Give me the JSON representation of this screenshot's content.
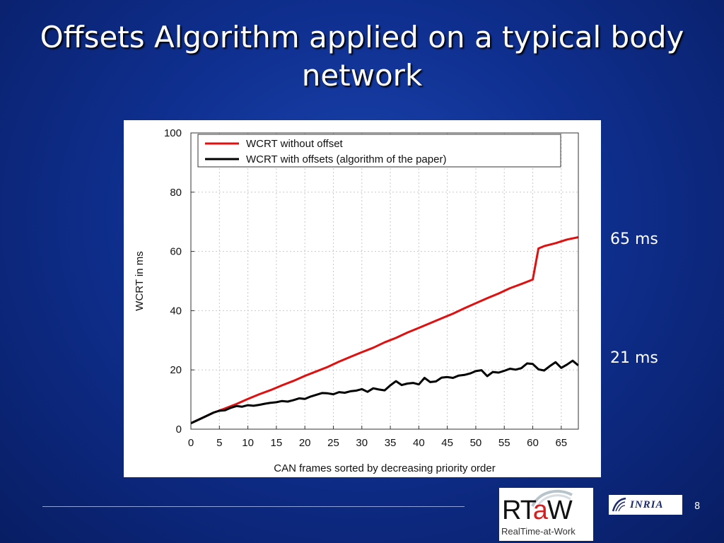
{
  "slide": {
    "title": "Offsets Algorithm applied on a typical body network",
    "annotation_high": "65 ms",
    "annotation_low": "21 ms",
    "page_number": "8",
    "logo_rtaw_main_pre": "RT",
    "logo_rtaw_main_accent": "a",
    "logo_rtaw_main_post": "W",
    "logo_rtaw_tagline": "RealTime-at-Work",
    "logo_inria": "INRIA"
  },
  "chart_data": {
    "type": "line",
    "title": "",
    "xlabel": "CAN frames sorted by decreasing priority order",
    "ylabel": "WCRT in ms",
    "xlim": [
      0,
      68
    ],
    "ylim": [
      0,
      100
    ],
    "xticks": [
      0,
      5,
      10,
      15,
      20,
      25,
      30,
      35,
      40,
      45,
      50,
      55,
      60,
      65
    ],
    "yticks": [
      0,
      20,
      40,
      60,
      80,
      100
    ],
    "grid": true,
    "legend": "top-left",
    "series": [
      {
        "name": "WCRT without offset",
        "color": "#e01010",
        "x": [
          0,
          2,
          4,
          5,
          6,
          8,
          10,
          12,
          14,
          16,
          18,
          20,
          22,
          24,
          26,
          28,
          30,
          32,
          34,
          36,
          38,
          40,
          42,
          44,
          46,
          48,
          50,
          52,
          54,
          56,
          58,
          60,
          61,
          62,
          64,
          66,
          68
        ],
        "y": [
          2,
          3.8,
          5.6,
          6.3,
          7,
          8.5,
          10.2,
          11.8,
          13.2,
          14.8,
          16.3,
          18,
          19.5,
          21,
          22.8,
          24.4,
          26,
          27.5,
          29.3,
          30.8,
          32.6,
          34.2,
          35.8,
          37.4,
          39,
          40.8,
          42.5,
          44.2,
          45.8,
          47.6,
          49,
          50.5,
          61,
          61.8,
          62.8,
          64,
          64.8
        ]
      },
      {
        "name": "WCRT with offsets (algorithm of the paper)",
        "color": "#000000",
        "x": [
          0,
          2,
          4,
          5,
          6,
          7,
          8,
          9,
          10,
          11,
          12,
          13,
          14,
          15,
          16,
          17,
          18,
          19,
          20,
          21,
          22,
          23,
          24,
          25,
          26,
          27,
          28,
          29,
          30,
          31,
          32,
          33,
          34,
          35,
          36,
          37,
          38,
          39,
          40,
          41,
          42,
          43,
          44,
          45,
          46,
          47,
          48,
          49,
          50,
          51,
          52,
          53,
          54,
          55,
          56,
          57,
          58,
          59,
          60,
          61,
          62,
          63,
          64,
          65,
          66,
          67,
          68
        ],
        "y": [
          2,
          3.8,
          5.6,
          6.2,
          6.4,
          7.2,
          7.8,
          7.6,
          8.1,
          7.9,
          8.2,
          8.6,
          8.9,
          9.1,
          9.5,
          9.3,
          9.8,
          10.4,
          10.2,
          11,
          11.6,
          12.2,
          12.1,
          11.8,
          12.5,
          12.3,
          12.8,
          13,
          13.5,
          12.6,
          13.8,
          13.4,
          13.1,
          14.8,
          16.2,
          14.9,
          15.4,
          15.6,
          15.1,
          17.3,
          15.9,
          16.1,
          17.4,
          17.6,
          17.3,
          18.1,
          18.3,
          18.8,
          19.6,
          19.9,
          17.9,
          19.3,
          19.1,
          19.7,
          20.4,
          20.1,
          20.6,
          22.2,
          22,
          20.2,
          19.8,
          21.3,
          22.6,
          20.7,
          21.8,
          23.1,
          21.5
        ]
      }
    ]
  }
}
